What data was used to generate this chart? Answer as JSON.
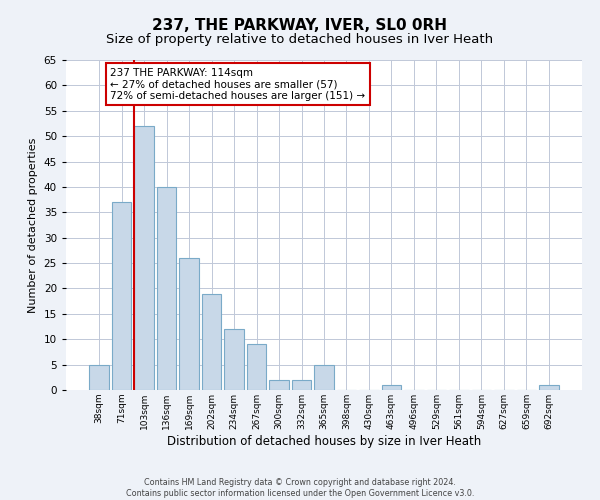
{
  "title": "237, THE PARKWAY, IVER, SL0 0RH",
  "subtitle": "Size of property relative to detached houses in Iver Heath",
  "xlabel": "Distribution of detached houses by size in Iver Heath",
  "ylabel": "Number of detached properties",
  "bar_labels": [
    "38sqm",
    "71sqm",
    "103sqm",
    "136sqm",
    "169sqm",
    "202sqm",
    "234sqm",
    "267sqm",
    "300sqm",
    "332sqm",
    "365sqm",
    "398sqm",
    "430sqm",
    "463sqm",
    "496sqm",
    "529sqm",
    "561sqm",
    "594sqm",
    "627sqm",
    "659sqm",
    "692sqm"
  ],
  "bar_values": [
    5,
    37,
    52,
    40,
    26,
    19,
    12,
    9,
    2,
    2,
    5,
    0,
    0,
    1,
    0,
    0,
    0,
    0,
    0,
    0,
    1
  ],
  "bar_color": "#c8d8e8",
  "bar_edge_color": "#7aaac8",
  "vline_color": "#cc0000",
  "vline_xindex": 2,
  "annotation_box_text": "237 THE PARKWAY: 114sqm\n← 27% of detached houses are smaller (57)\n72% of semi-detached houses are larger (151) →",
  "ylim": [
    0,
    65
  ],
  "yticks": [
    0,
    5,
    10,
    15,
    20,
    25,
    30,
    35,
    40,
    45,
    50,
    55,
    60,
    65
  ],
  "bg_color": "#eef2f8",
  "plot_bg_color": "#ffffff",
  "grid_color": "#c0c8d8",
  "footer_text": "Contains HM Land Registry data © Crown copyright and database right 2024.\nContains public sector information licensed under the Open Government Licence v3.0.",
  "title_fontsize": 11,
  "subtitle_fontsize": 9.5,
  "xlabel_fontsize": 8.5,
  "ylabel_fontsize": 8
}
